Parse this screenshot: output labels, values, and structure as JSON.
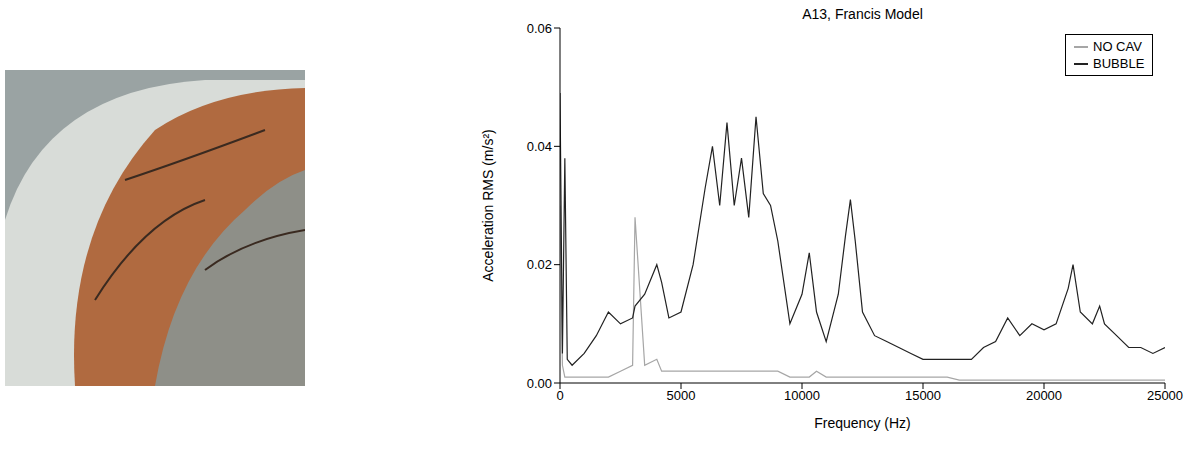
{
  "chart_data": {
    "type": "line",
    "title": "A13, Francis Model",
    "x_label": "Frequency (Hz)",
    "y_label": "Acceleration RMS (m/s²)",
    "x": [
      0,
      100,
      200,
      300,
      500,
      1000,
      1500,
      2000,
      2500,
      3000,
      3100,
      3500,
      4000,
      4200,
      4500,
      5000,
      5500,
      6000,
      6300,
      6600,
      6900,
      7200,
      7500,
      7800,
      8100,
      8400,
      8700,
      9000,
      9500,
      10000,
      10300,
      10600,
      11000,
      11500,
      11800,
      12000,
      12200,
      12500,
      13000,
      13500,
      14000,
      14500,
      15000,
      15500,
      16000,
      16500,
      17000,
      17500,
      18000,
      18500,
      19000,
      19500,
      20000,
      20500,
      21000,
      21200,
      21500,
      22000,
      22300,
      22500,
      23000,
      23500,
      24000,
      24500,
      25000
    ],
    "series": [
      {
        "name": "NO CAV",
        "color": "#a6a6a6",
        "values": [
          0.03,
          0.003,
          0.001,
          0.001,
          0.001,
          0.001,
          0.001,
          0.001,
          0.002,
          0.003,
          0.028,
          0.003,
          0.004,
          0.002,
          0.002,
          0.002,
          0.002,
          0.002,
          0.002,
          0.002,
          0.002,
          0.002,
          0.002,
          0.002,
          0.002,
          0.002,
          0.002,
          0.002,
          0.001,
          0.001,
          0.001,
          0.002,
          0.001,
          0.001,
          0.001,
          0.001,
          0.001,
          0.001,
          0.001,
          0.001,
          0.001,
          0.001,
          0.001,
          0.001,
          0.001,
          0.0005,
          0.0005,
          0.0005,
          0.0005,
          0.0005,
          0.0005,
          0.0005,
          0.0005,
          0.0005,
          0.0005,
          0.0005,
          0.0005,
          0.0005,
          0.0005,
          0.0005,
          0.0005,
          0.0005,
          0.0005,
          0.0005,
          0.0005
        ]
      },
      {
        "name": "BUBBLE",
        "color": "#222222",
        "values": [
          0.049,
          0.005,
          0.038,
          0.004,
          0.003,
          0.005,
          0.008,
          0.012,
          0.01,
          0.011,
          0.013,
          0.015,
          0.02,
          0.017,
          0.011,
          0.012,
          0.02,
          0.033,
          0.04,
          0.03,
          0.044,
          0.03,
          0.038,
          0.028,
          0.045,
          0.032,
          0.03,
          0.024,
          0.01,
          0.015,
          0.022,
          0.012,
          0.007,
          0.015,
          0.025,
          0.031,
          0.024,
          0.012,
          0.008,
          0.007,
          0.006,
          0.005,
          0.004,
          0.004,
          0.004,
          0.004,
          0.004,
          0.006,
          0.007,
          0.011,
          0.008,
          0.01,
          0.009,
          0.01,
          0.016,
          0.02,
          0.012,
          0.01,
          0.013,
          0.01,
          0.008,
          0.006,
          0.006,
          0.005,
          0.006
        ]
      }
    ],
    "xlim": [
      0,
      25000
    ],
    "xticks": [
      0,
      5000,
      10000,
      15000,
      20000,
      25000
    ],
    "ylim": [
      0,
      0.06
    ],
    "yticks": [
      {
        "value": 0,
        "label": "0.00"
      },
      {
        "value": 0.02,
        "label": "0.02"
      },
      {
        "value": 0.04,
        "label": "0.04"
      },
      {
        "value": 0.06,
        "label": "0.06"
      }
    ],
    "grid": false,
    "legend": "upper right"
  }
}
